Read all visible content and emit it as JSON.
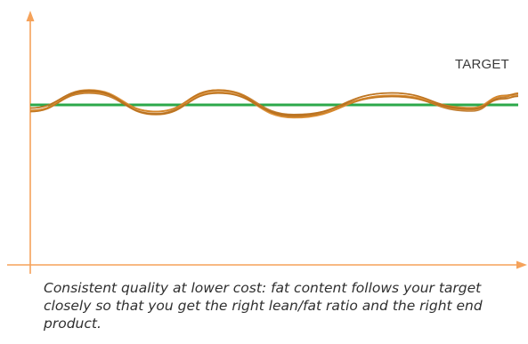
{
  "diagram": {
    "target_label": "TARGET",
    "caption": "Consistent quality at lower cost: fat content follows your target closely so that you get the right lean/fat ratio and the right end product."
  },
  "colors": {
    "axis": "#f5a25a",
    "target_line": "#2ca84a",
    "wave": "#d98a2b",
    "wave_dark": "#b8701e",
    "label_text": "#3a3a3a"
  }
}
